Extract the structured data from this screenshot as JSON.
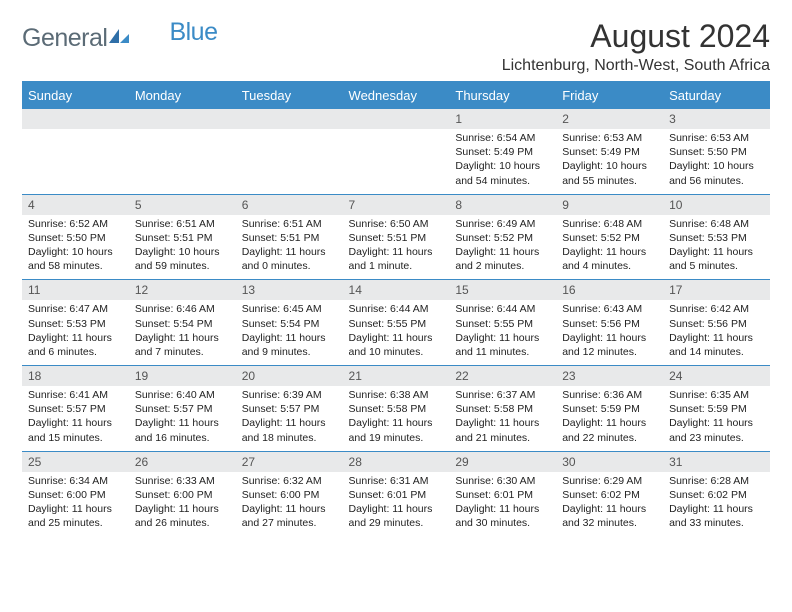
{
  "logo": {
    "text1": "General",
    "text2": "Blue"
  },
  "title": "August 2024",
  "location": "Lichtenburg, North-West, South Africa",
  "colors": {
    "header_bg": "#3b8bc6",
    "header_text": "#ffffff",
    "daynum_bg": "#e8e9ea",
    "border": "#3b8bc6",
    "logo_gray": "#5b6b76",
    "logo_blue": "#3b8bc6"
  },
  "day_headers": [
    "Sunday",
    "Monday",
    "Tuesday",
    "Wednesday",
    "Thursday",
    "Friday",
    "Saturday"
  ],
  "weeks": [
    [
      {
        "n": "",
        "info": ""
      },
      {
        "n": "",
        "info": ""
      },
      {
        "n": "",
        "info": ""
      },
      {
        "n": "",
        "info": ""
      },
      {
        "n": "1",
        "info": "Sunrise: 6:54 AM\nSunset: 5:49 PM\nDaylight: 10 hours and 54 minutes."
      },
      {
        "n": "2",
        "info": "Sunrise: 6:53 AM\nSunset: 5:49 PM\nDaylight: 10 hours and 55 minutes."
      },
      {
        "n": "3",
        "info": "Sunrise: 6:53 AM\nSunset: 5:50 PM\nDaylight: 10 hours and 56 minutes."
      }
    ],
    [
      {
        "n": "4",
        "info": "Sunrise: 6:52 AM\nSunset: 5:50 PM\nDaylight: 10 hours and 58 minutes."
      },
      {
        "n": "5",
        "info": "Sunrise: 6:51 AM\nSunset: 5:51 PM\nDaylight: 10 hours and 59 minutes."
      },
      {
        "n": "6",
        "info": "Sunrise: 6:51 AM\nSunset: 5:51 PM\nDaylight: 11 hours and 0 minutes."
      },
      {
        "n": "7",
        "info": "Sunrise: 6:50 AM\nSunset: 5:51 PM\nDaylight: 11 hours and 1 minute."
      },
      {
        "n": "8",
        "info": "Sunrise: 6:49 AM\nSunset: 5:52 PM\nDaylight: 11 hours and 2 minutes."
      },
      {
        "n": "9",
        "info": "Sunrise: 6:48 AM\nSunset: 5:52 PM\nDaylight: 11 hours and 4 minutes."
      },
      {
        "n": "10",
        "info": "Sunrise: 6:48 AM\nSunset: 5:53 PM\nDaylight: 11 hours and 5 minutes."
      }
    ],
    [
      {
        "n": "11",
        "info": "Sunrise: 6:47 AM\nSunset: 5:53 PM\nDaylight: 11 hours and 6 minutes."
      },
      {
        "n": "12",
        "info": "Sunrise: 6:46 AM\nSunset: 5:54 PM\nDaylight: 11 hours and 7 minutes."
      },
      {
        "n": "13",
        "info": "Sunrise: 6:45 AM\nSunset: 5:54 PM\nDaylight: 11 hours and 9 minutes."
      },
      {
        "n": "14",
        "info": "Sunrise: 6:44 AM\nSunset: 5:55 PM\nDaylight: 11 hours and 10 minutes."
      },
      {
        "n": "15",
        "info": "Sunrise: 6:44 AM\nSunset: 5:55 PM\nDaylight: 11 hours and 11 minutes."
      },
      {
        "n": "16",
        "info": "Sunrise: 6:43 AM\nSunset: 5:56 PM\nDaylight: 11 hours and 12 minutes."
      },
      {
        "n": "17",
        "info": "Sunrise: 6:42 AM\nSunset: 5:56 PM\nDaylight: 11 hours and 14 minutes."
      }
    ],
    [
      {
        "n": "18",
        "info": "Sunrise: 6:41 AM\nSunset: 5:57 PM\nDaylight: 11 hours and 15 minutes."
      },
      {
        "n": "19",
        "info": "Sunrise: 6:40 AM\nSunset: 5:57 PM\nDaylight: 11 hours and 16 minutes."
      },
      {
        "n": "20",
        "info": "Sunrise: 6:39 AM\nSunset: 5:57 PM\nDaylight: 11 hours and 18 minutes."
      },
      {
        "n": "21",
        "info": "Sunrise: 6:38 AM\nSunset: 5:58 PM\nDaylight: 11 hours and 19 minutes."
      },
      {
        "n": "22",
        "info": "Sunrise: 6:37 AM\nSunset: 5:58 PM\nDaylight: 11 hours and 21 minutes."
      },
      {
        "n": "23",
        "info": "Sunrise: 6:36 AM\nSunset: 5:59 PM\nDaylight: 11 hours and 22 minutes."
      },
      {
        "n": "24",
        "info": "Sunrise: 6:35 AM\nSunset: 5:59 PM\nDaylight: 11 hours and 23 minutes."
      }
    ],
    [
      {
        "n": "25",
        "info": "Sunrise: 6:34 AM\nSunset: 6:00 PM\nDaylight: 11 hours and 25 minutes."
      },
      {
        "n": "26",
        "info": "Sunrise: 6:33 AM\nSunset: 6:00 PM\nDaylight: 11 hours and 26 minutes."
      },
      {
        "n": "27",
        "info": "Sunrise: 6:32 AM\nSunset: 6:00 PM\nDaylight: 11 hours and 27 minutes."
      },
      {
        "n": "28",
        "info": "Sunrise: 6:31 AM\nSunset: 6:01 PM\nDaylight: 11 hours and 29 minutes."
      },
      {
        "n": "29",
        "info": "Sunrise: 6:30 AM\nSunset: 6:01 PM\nDaylight: 11 hours and 30 minutes."
      },
      {
        "n": "30",
        "info": "Sunrise: 6:29 AM\nSunset: 6:02 PM\nDaylight: 11 hours and 32 minutes."
      },
      {
        "n": "31",
        "info": "Sunrise: 6:28 AM\nSunset: 6:02 PM\nDaylight: 11 hours and 33 minutes."
      }
    ]
  ]
}
